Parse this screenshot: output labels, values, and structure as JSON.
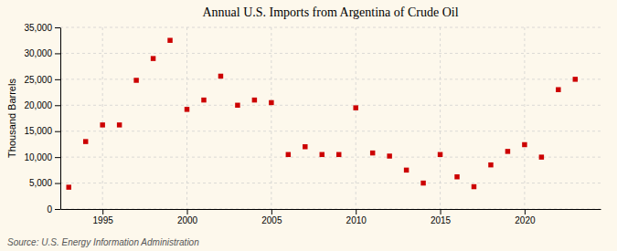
{
  "chart_data": {
    "type": "scatter",
    "title": "Annual U.S. Imports from Argentina of Crude Oil",
    "ylabel": "Thousand Barrels",
    "source": "Source: U.S. Energy Information Administration",
    "x": [
      1993,
      1994,
      1995,
      1996,
      1997,
      1998,
      1999,
      2000,
      2001,
      2002,
      2003,
      2004,
      2005,
      2006,
      2007,
      2008,
      2009,
      2010,
      2011,
      2012,
      2013,
      2014,
      2015,
      2016,
      2017,
      2018,
      2019,
      2020,
      2021,
      2022,
      2023
    ],
    "values": [
      4200,
      13000,
      16200,
      16200,
      24800,
      29000,
      32500,
      19200,
      21000,
      25600,
      20000,
      21000,
      20500,
      10500,
      12000,
      10500,
      10500,
      19500,
      10800,
      10200,
      7500,
      5000,
      10500,
      6200,
      4300,
      8500,
      11100,
      12400,
      10000,
      23000,
      25000
    ],
    "color": "#cc0000",
    "marker": "square",
    "xlim": [
      1992.5,
      2024.5
    ],
    "xticks": [
      1995,
      2000,
      2005,
      2010,
      2015,
      2020
    ],
    "ylim": [
      0,
      35000
    ],
    "yticks": [
      0,
      {
        "value": 5000,
        "label": "5,000"
      },
      {
        "value": 10000,
        "label": "10,000"
      },
      {
        "value": 15000,
        "label": "15,000"
      },
      {
        "value": 20000,
        "label": "20,000"
      },
      {
        "value": 25000,
        "label": "25,000"
      },
      {
        "value": 30000,
        "label": "30,000"
      },
      {
        "value": 35000,
        "label": "35,000"
      }
    ],
    "grid": true
  }
}
